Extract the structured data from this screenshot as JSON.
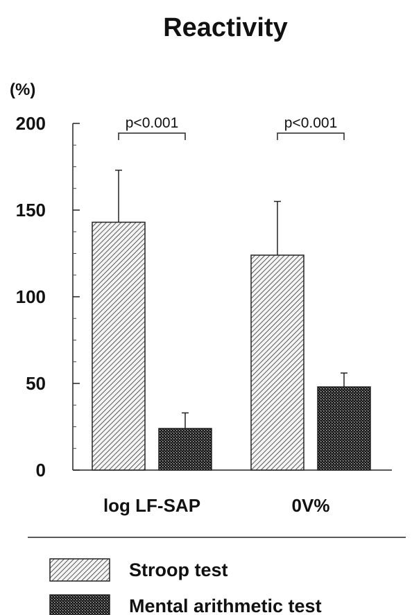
{
  "chart_data": {
    "type": "bar",
    "title": "Reactivity",
    "ylabel": "(%)",
    "ylim": [
      0,
      200
    ],
    "yticks": [
      0,
      50,
      100,
      150,
      200
    ],
    "grid": false,
    "legend_position": "bottom",
    "categories": [
      "log LF-SAP",
      "0V%"
    ],
    "series": [
      {
        "name": "Stroop test",
        "values": [
          143,
          124
        ],
        "errors": [
          30,
          31
        ],
        "pattern": "diagonal-hatch"
      },
      {
        "name": "Mental arithmetic test",
        "values": [
          24,
          48
        ],
        "errors": [
          9,
          8
        ],
        "pattern": "cross-hatch"
      }
    ],
    "annotations": [
      "p<0.001",
      "p<0.001"
    ]
  }
}
